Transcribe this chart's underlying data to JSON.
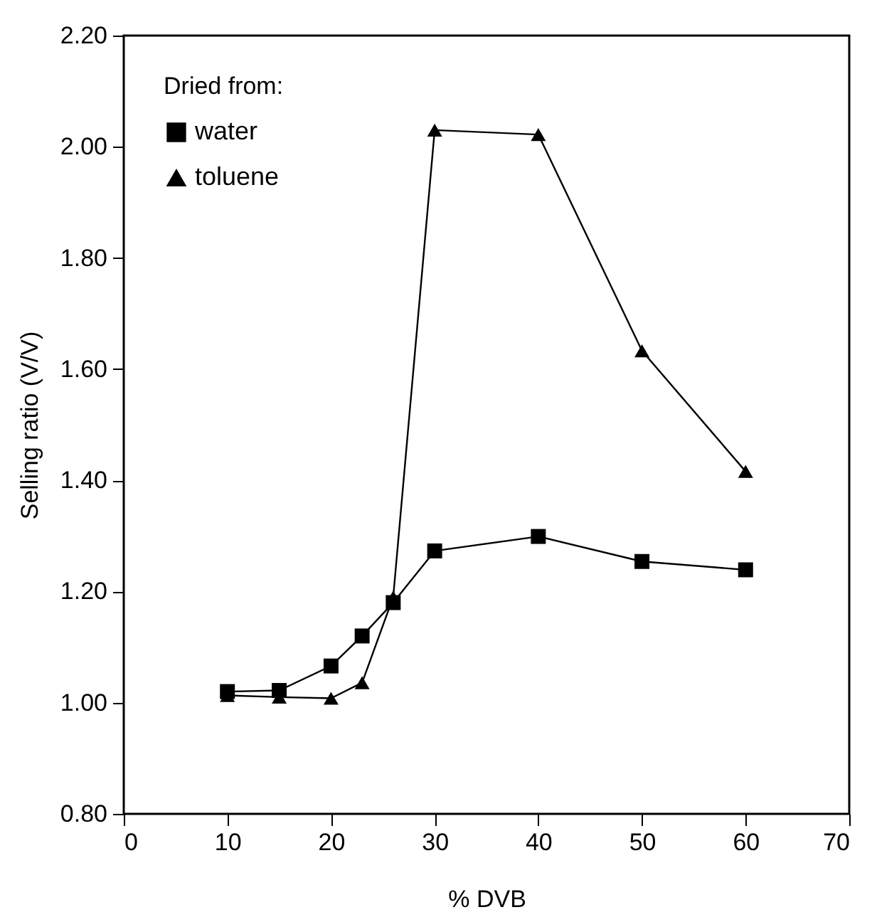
{
  "chart_data": {
    "type": "line",
    "xlabel": "% DVB",
    "ylabel": "Selling ratio (V/V)",
    "legend_title": "Dried from:",
    "legend": "top left",
    "grid": false,
    "line_style": "solid",
    "xlim": [
      0,
      70
    ],
    "xticks": [
      0,
      10,
      20,
      30,
      40,
      50,
      60,
      70
    ],
    "ylim": [
      0.8,
      2.2
    ],
    "yticks": [
      {
        "value": 0.8,
        "label": "0.80"
      },
      {
        "value": 1.0,
        "label": "1.00"
      },
      {
        "value": 1.2,
        "label": "1.20"
      },
      {
        "value": 1.4,
        "label": "1.40"
      },
      {
        "value": 1.6,
        "label": "1.60"
      },
      {
        "value": 1.8,
        "label": "1.80"
      },
      {
        "value": 2.0,
        "label": "2.00"
      },
      {
        "value": 2.2,
        "label": "2.20"
      }
    ],
    "x": [
      10,
      15,
      20,
      23,
      26,
      30,
      40,
      50,
      60
    ],
    "series": [
      {
        "name": "water",
        "color": "#000000",
        "marker": "square",
        "values": [
          1.02,
          1.022,
          1.066,
          1.12,
          1.18,
          1.273,
          1.299,
          1.254,
          1.239
        ]
      },
      {
        "name": "toluene",
        "color": "#000000",
        "marker": "triangle",
        "values": [
          1.013,
          1.01,
          1.008,
          1.036,
          1.19,
          2.03,
          2.022,
          1.633,
          1.416
        ]
      }
    ]
  }
}
